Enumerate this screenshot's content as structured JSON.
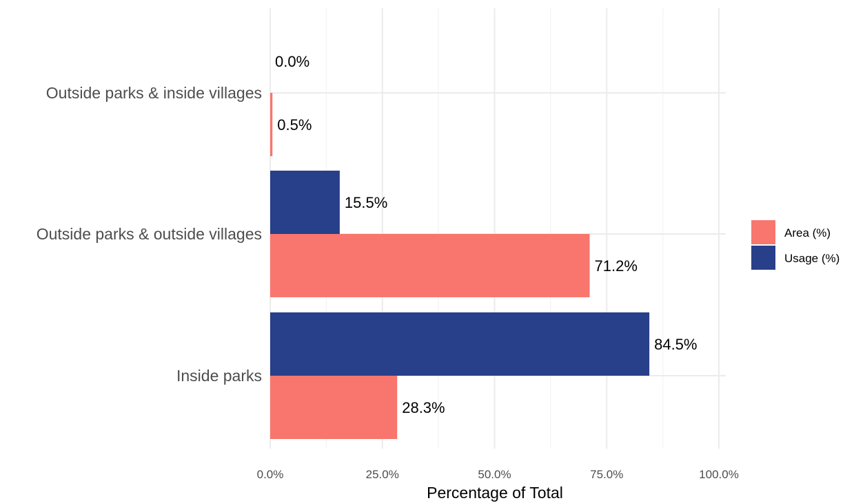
{
  "chart_data": {
    "type": "bar",
    "orientation": "horizontal",
    "categories": [
      "Inside parks",
      "Outside parks & outside villages",
      "Outside parks & inside villages"
    ],
    "series": [
      {
        "name": "Area (%)",
        "color": "#f8766d",
        "values": [
          28.3,
          71.2,
          0.5
        ],
        "labels": [
          "28.3%",
          "71.2%",
          "0.5%"
        ]
      },
      {
        "name": "Usage (%)",
        "color": "#283f8a",
        "values": [
          84.5,
          15.5,
          0.0
        ],
        "labels": [
          "84.5%",
          "15.5%",
          "0.0%"
        ]
      }
    ],
    "xlabel": "Percentage of Total",
    "ylabel": "",
    "xlim": [
      0,
      100
    ],
    "xticks": [
      0,
      25,
      50,
      75,
      100
    ],
    "xtick_labels": [
      "0.0%",
      "25.0%",
      "50.0%",
      "75.0%",
      "100.0%"
    ],
    "grid": true,
    "legend_position": "right"
  }
}
